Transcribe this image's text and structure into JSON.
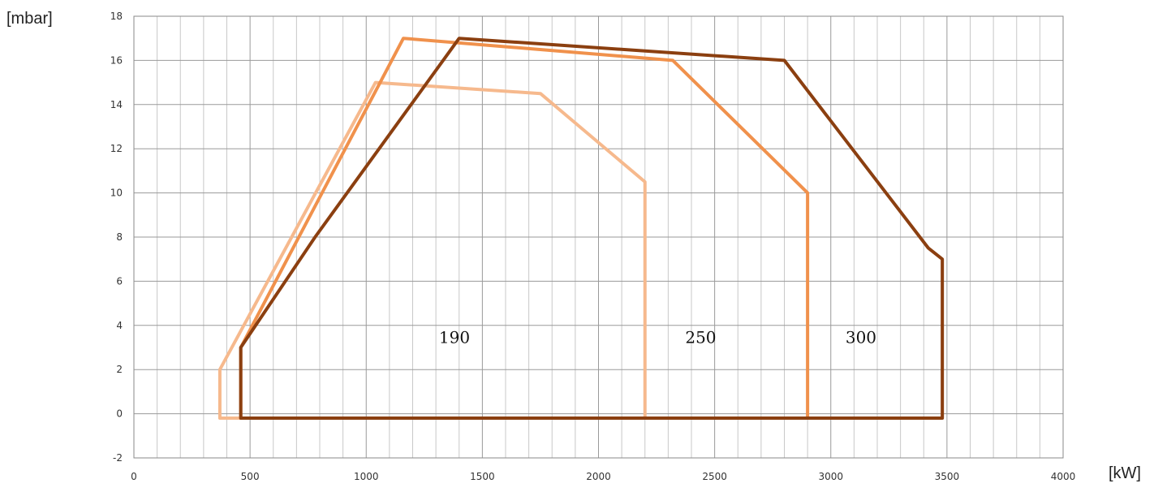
{
  "chart_data": {
    "type": "line",
    "ylabel": "[mbar]",
    "xlabel": "[kW]",
    "xlim": [
      0,
      4000
    ],
    "ylim": [
      -2,
      18
    ],
    "x_ticks": [
      0,
      500,
      1000,
      1500,
      2000,
      2500,
      3000,
      3500,
      4000
    ],
    "y_ticks": [
      -2,
      0,
      2,
      4,
      6,
      8,
      10,
      12,
      14,
      16,
      18
    ],
    "grid": true,
    "series": [
      {
        "name": "190",
        "color": "#f6b98d",
        "points": [
          [
            370,
            -0.2
          ],
          [
            370,
            2
          ],
          [
            1040,
            15
          ],
          [
            1750,
            14.5
          ],
          [
            2200,
            10.5
          ],
          [
            2200,
            -0.2
          ],
          [
            370,
            -0.2
          ]
        ]
      },
      {
        "name": "250",
        "color": "#f0914c",
        "points": [
          [
            460,
            -0.2
          ],
          [
            460,
            3
          ],
          [
            1160,
            17
          ],
          [
            2320,
            16
          ],
          [
            2900,
            10
          ],
          [
            2900,
            -0.2
          ],
          [
            460,
            -0.2
          ]
        ]
      },
      {
        "name": "300",
        "color": "#8b3f10",
        "points": [
          [
            460,
            -0.2
          ],
          [
            460,
            3
          ],
          [
            780,
            8
          ],
          [
            1400,
            17
          ],
          [
            2800,
            16
          ],
          [
            3420,
            7.5
          ],
          [
            3480,
            7
          ],
          [
            3480,
            -0.2
          ],
          [
            460,
            -0.2
          ]
        ]
      }
    ],
    "annotations": [
      {
        "text": "190",
        "x": 1380,
        "y": 3.2
      },
      {
        "text": "250",
        "x": 2440,
        "y": 3.2
      },
      {
        "text": "300",
        "x": 3130,
        "y": 3.2
      }
    ]
  }
}
